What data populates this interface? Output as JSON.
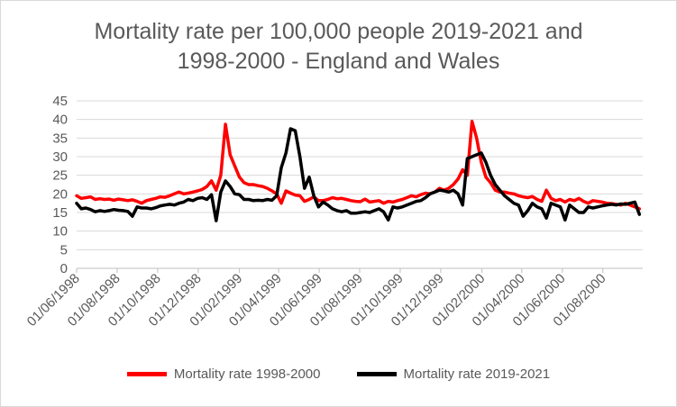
{
  "chart_data": {
    "type": "line",
    "title": "Mortality rate per 100,000 people 2019-2021 and 1998-2000 - England and Wales",
    "title_lines": [
      "Mortality rate per 100,000 people 2019-2021 and",
      "1998-2000 - England and Wales"
    ],
    "xlabel": "",
    "ylabel": "",
    "ylim": [
      0,
      45
    ],
    "yticks": [
      0,
      5,
      10,
      15,
      20,
      25,
      30,
      35,
      40,
      45
    ],
    "xlim": [
      "01/06/1998",
      "30/09/2000"
    ],
    "x_tick_labels": [
      "01/06/1998",
      "01/08/1998",
      "01/10/1998",
      "01/12/1998",
      "01/02/1999",
      "01/04/1999",
      "01/06/1999",
      "01/08/1999",
      "01/10/1999",
      "01/12/1999",
      "01/02/2000",
      "01/04/2000",
      "01/06/2000",
      "01/08/2000"
    ],
    "grid": "horizontal",
    "legend_position": "bottom",
    "series": [
      {
        "name": "Mortality rate 1998-2000",
        "color": "#ff0000",
        "points": [
          [
            "01/06/1998",
            19.5
          ],
          [
            "08/06/1998",
            18.8
          ],
          [
            "15/06/1998",
            19.0
          ],
          [
            "22/06/1998",
            19.2
          ],
          [
            "29/06/1998",
            18.5
          ],
          [
            "06/07/1998",
            18.7
          ],
          [
            "13/07/1998",
            18.5
          ],
          [
            "20/07/1998",
            18.6
          ],
          [
            "27/07/1998",
            18.3
          ],
          [
            "03/08/1998",
            18.6
          ],
          [
            "10/08/1998",
            18.4
          ],
          [
            "17/08/1998",
            18.2
          ],
          [
            "24/08/1998",
            18.4
          ],
          [
            "31/08/1998",
            18.0
          ],
          [
            "07/09/1998",
            17.5
          ],
          [
            "14/09/1998",
            18.2
          ],
          [
            "21/09/1998",
            18.5
          ],
          [
            "28/09/1998",
            18.8
          ],
          [
            "05/10/1998",
            19.2
          ],
          [
            "12/10/1998",
            19.1
          ],
          [
            "19/10/1998",
            19.5
          ],
          [
            "26/10/1998",
            20.0
          ],
          [
            "02/11/1998",
            20.5
          ],
          [
            "09/11/1998",
            20.0
          ],
          [
            "16/11/1998",
            20.2
          ],
          [
            "23/11/1998",
            20.5
          ],
          [
            "30/11/1998",
            20.8
          ],
          [
            "07/12/1998",
            21.2
          ],
          [
            "14/12/1998",
            22.0
          ],
          [
            "21/12/1998",
            23.5
          ],
          [
            "28/12/1998",
            21.0
          ],
          [
            "04/01/1999",
            25.0
          ],
          [
            "11/01/1999",
            38.7
          ],
          [
            "18/01/1999",
            30.5
          ],
          [
            "25/01/1999",
            27.5
          ],
          [
            "01/02/1999",
            24.5
          ],
          [
            "08/02/1999",
            23.0
          ],
          [
            "15/02/1999",
            22.5
          ],
          [
            "22/02/1999",
            22.5
          ],
          [
            "01/03/1999",
            22.2
          ],
          [
            "08/03/1999",
            22.0
          ],
          [
            "15/03/1999",
            21.5
          ],
          [
            "22/03/1999",
            20.8
          ],
          [
            "29/03/1999",
            20.0
          ],
          [
            "05/04/1999",
            17.5
          ],
          [
            "12/04/1999",
            20.8
          ],
          [
            "19/04/1999",
            20.2
          ],
          [
            "26/04/1999",
            19.7
          ],
          [
            "03/05/1999",
            19.5
          ],
          [
            "10/05/1999",
            18.0
          ],
          [
            "17/05/1999",
            18.5
          ],
          [
            "24/05/1999",
            19.2
          ],
          [
            "31/05/1999",
            18.2
          ],
          [
            "07/06/1999",
            18.2
          ],
          [
            "14/06/1999",
            18.5
          ],
          [
            "21/06/1999",
            19.0
          ],
          [
            "28/06/1999",
            18.7
          ],
          [
            "05/07/1999",
            18.8
          ],
          [
            "12/07/1999",
            18.5
          ],
          [
            "19/07/1999",
            18.2
          ],
          [
            "26/07/1999",
            18.0
          ],
          [
            "02/08/1999",
            17.9
          ],
          [
            "09/08/1999",
            18.6
          ],
          [
            "16/08/1999",
            17.8
          ],
          [
            "23/08/1999",
            18.0
          ],
          [
            "30/08/1999",
            18.2
          ],
          [
            "06/09/1999",
            17.5
          ],
          [
            "13/09/1999",
            18.0
          ],
          [
            "20/09/1999",
            17.8
          ],
          [
            "27/09/1999",
            18.2
          ],
          [
            "04/10/1999",
            18.5
          ],
          [
            "11/10/1999",
            19.0
          ],
          [
            "18/10/1999",
            19.5
          ],
          [
            "25/10/1999",
            19.2
          ],
          [
            "01/11/1999",
            19.8
          ],
          [
            "08/11/1999",
            20.2
          ],
          [
            "15/11/1999",
            20.0
          ],
          [
            "22/11/1999",
            20.5
          ],
          [
            "29/11/1999",
            21.5
          ],
          [
            "06/12/1999",
            21.0
          ],
          [
            "13/12/1999",
            21.5
          ],
          [
            "20/12/1999",
            22.5
          ],
          [
            "27/12/1999",
            24.0
          ],
          [
            "03/01/2000",
            26.5
          ],
          [
            "10/01/2000",
            25.0
          ],
          [
            "17/01/2000",
            39.5
          ],
          [
            "24/01/2000",
            35.0
          ],
          [
            "31/01/2000",
            28.5
          ],
          [
            "07/02/2000",
            24.5
          ],
          [
            "14/02/2000",
            23.0
          ],
          [
            "21/02/2000",
            21.0
          ],
          [
            "28/02/2000",
            20.5
          ],
          [
            "06/03/2000",
            20.5
          ],
          [
            "13/03/2000",
            20.2
          ],
          [
            "20/03/2000",
            20.0
          ],
          [
            "27/03/2000",
            19.5
          ],
          [
            "03/04/2000",
            19.2
          ],
          [
            "10/04/2000",
            19.0
          ],
          [
            "17/04/2000",
            19.3
          ],
          [
            "24/04/2000",
            18.5
          ],
          [
            "01/05/2000",
            18.0
          ],
          [
            "08/05/2000",
            21.0
          ],
          [
            "15/05/2000",
            18.8
          ],
          [
            "22/05/2000",
            18.2
          ],
          [
            "29/05/2000",
            18.5
          ],
          [
            "05/06/2000",
            17.8
          ],
          [
            "12/06/2000",
            18.5
          ],
          [
            "19/06/2000",
            18.2
          ],
          [
            "26/06/2000",
            18.8
          ],
          [
            "03/07/2000",
            18.0
          ],
          [
            "10/07/2000",
            17.5
          ],
          [
            "17/07/2000",
            18.2
          ],
          [
            "24/07/2000",
            18.0
          ],
          [
            "31/07/2000",
            17.8
          ],
          [
            "07/08/2000",
            17.5
          ],
          [
            "14/08/2000",
            17.4
          ],
          [
            "21/08/2000",
            17.2
          ],
          [
            "28/08/2000",
            17.0
          ],
          [
            "04/09/2000",
            17.5
          ],
          [
            "11/09/2000",
            17.0
          ],
          [
            "18/09/2000",
            16.5
          ],
          [
            "25/09/2000",
            16.0
          ]
        ]
      },
      {
        "name": "Mortality rate 2019-2021",
        "color": "#000000",
        "points": [
          [
            "01/06/1998",
            17.5
          ],
          [
            "08/06/1998",
            16.0
          ],
          [
            "15/06/1998",
            16.2
          ],
          [
            "22/06/1998",
            15.8
          ],
          [
            "29/06/1998",
            15.2
          ],
          [
            "06/07/1998",
            15.5
          ],
          [
            "13/07/1998",
            15.3
          ],
          [
            "20/07/1998",
            15.5
          ],
          [
            "27/07/1998",
            15.8
          ],
          [
            "03/08/1998",
            15.6
          ],
          [
            "10/08/1998",
            15.5
          ],
          [
            "17/08/1998",
            15.3
          ],
          [
            "24/08/1998",
            14.0
          ],
          [
            "31/08/1998",
            16.5
          ],
          [
            "07/09/1998",
            16.2
          ],
          [
            "14/09/1998",
            16.2
          ],
          [
            "21/09/1998",
            16.0
          ],
          [
            "28/09/1998",
            16.3
          ],
          [
            "05/10/1998",
            16.8
          ],
          [
            "12/10/1998",
            17.0
          ],
          [
            "19/10/1998",
            17.2
          ],
          [
            "26/10/1998",
            17.0
          ],
          [
            "02/11/1998",
            17.5
          ],
          [
            "09/11/1998",
            17.8
          ],
          [
            "16/11/1998",
            18.5
          ],
          [
            "23/11/1998",
            18.2
          ],
          [
            "30/11/1998",
            18.8
          ],
          [
            "07/12/1998",
            19.0
          ],
          [
            "14/12/1998",
            18.5
          ],
          [
            "21/12/1998",
            19.8
          ],
          [
            "28/12/1998",
            12.8
          ],
          [
            "04/01/1999",
            20.5
          ],
          [
            "11/01/1999",
            23.5
          ],
          [
            "18/01/1999",
            22.0
          ],
          [
            "25/01/1999",
            20.0
          ],
          [
            "01/02/1999",
            19.8
          ],
          [
            "08/02/1999",
            18.5
          ],
          [
            "15/02/1999",
            18.5
          ],
          [
            "22/02/1999",
            18.2
          ],
          [
            "01/03/1999",
            18.3
          ],
          [
            "08/03/1999",
            18.2
          ],
          [
            "15/03/1999",
            18.5
          ],
          [
            "22/03/1999",
            18.3
          ],
          [
            "29/03/1999",
            19.5
          ],
          [
            "05/04/1999",
            27.0
          ],
          [
            "12/04/1999",
            31.0
          ],
          [
            "19/04/1999",
            37.5
          ],
          [
            "26/04/1999",
            37.0
          ],
          [
            "03/05/1999",
            30.0
          ],
          [
            "10/05/1999",
            21.5
          ],
          [
            "17/05/1999",
            24.5
          ],
          [
            "24/05/1999",
            19.5
          ],
          [
            "31/05/1999",
            16.5
          ],
          [
            "07/06/1999",
            17.8
          ],
          [
            "14/06/1999",
            17.0
          ],
          [
            "21/06/1999",
            16.0
          ],
          [
            "28/06/1999",
            15.5
          ],
          [
            "05/07/1999",
            15.2
          ],
          [
            "12/07/1999",
            15.5
          ],
          [
            "19/07/1999",
            14.8
          ],
          [
            "26/07/1999",
            14.8
          ],
          [
            "02/08/1999",
            15.0
          ],
          [
            "09/08/1999",
            15.2
          ],
          [
            "16/08/1999",
            15.0
          ],
          [
            "23/08/1999",
            15.5
          ],
          [
            "30/08/1999",
            16.0
          ],
          [
            "06/09/1999",
            15.2
          ],
          [
            "13/09/1999",
            13.0
          ],
          [
            "20/09/1999",
            16.5
          ],
          [
            "27/09/1999",
            16.2
          ],
          [
            "04/10/1999",
            16.5
          ],
          [
            "11/10/1999",
            17.0
          ],
          [
            "18/10/1999",
            17.5
          ],
          [
            "25/10/1999",
            18.0
          ],
          [
            "01/11/1999",
            18.2
          ],
          [
            "08/11/1999",
            19.0
          ],
          [
            "15/11/1999",
            20.0
          ],
          [
            "22/11/1999",
            20.5
          ],
          [
            "29/11/1999",
            21.0
          ],
          [
            "06/12/1999",
            20.8
          ],
          [
            "13/12/1999",
            20.5
          ],
          [
            "20/12/1999",
            21.0
          ],
          [
            "27/12/1999",
            20.0
          ],
          [
            "03/01/2000",
            17.0
          ],
          [
            "10/01/2000",
            29.5
          ],
          [
            "17/01/2000",
            30.0
          ],
          [
            "24/01/2000",
            30.5
          ],
          [
            "31/01/2000",
            31.0
          ],
          [
            "07/02/2000",
            28.5
          ],
          [
            "14/02/2000",
            25.0
          ],
          [
            "21/02/2000",
            22.5
          ],
          [
            "28/02/2000",
            21.0
          ],
          [
            "06/03/2000",
            19.5
          ],
          [
            "13/03/2000",
            18.5
          ],
          [
            "20/03/2000",
            17.5
          ],
          [
            "27/03/2000",
            17.0
          ],
          [
            "03/04/2000",
            14.0
          ],
          [
            "10/04/2000",
            15.5
          ],
          [
            "17/04/2000",
            17.5
          ],
          [
            "24/04/2000",
            16.5
          ],
          [
            "01/05/2000",
            16.0
          ],
          [
            "08/05/2000",
            13.5
          ],
          [
            "15/05/2000",
            17.5
          ],
          [
            "22/05/2000",
            17.0
          ],
          [
            "29/05/2000",
            16.5
          ],
          [
            "05/06/2000",
            13.0
          ],
          [
            "12/06/2000",
            17.0
          ],
          [
            "19/06/2000",
            16.0
          ],
          [
            "26/06/2000",
            15.0
          ],
          [
            "03/07/2000",
            15.0
          ],
          [
            "10/07/2000",
            16.5
          ],
          [
            "17/07/2000",
            16.2
          ],
          [
            "24/07/2000",
            16.5
          ],
          [
            "31/07/2000",
            16.8
          ],
          [
            "07/08/2000",
            17.0
          ],
          [
            "14/08/2000",
            17.2
          ],
          [
            "21/08/2000",
            17.0
          ],
          [
            "28/08/2000",
            17.3
          ],
          [
            "04/09/2000",
            17.2
          ],
          [
            "11/09/2000",
            17.5
          ],
          [
            "18/09/2000",
            17.8
          ],
          [
            "25/09/2000",
            14.5
          ]
        ]
      }
    ]
  }
}
